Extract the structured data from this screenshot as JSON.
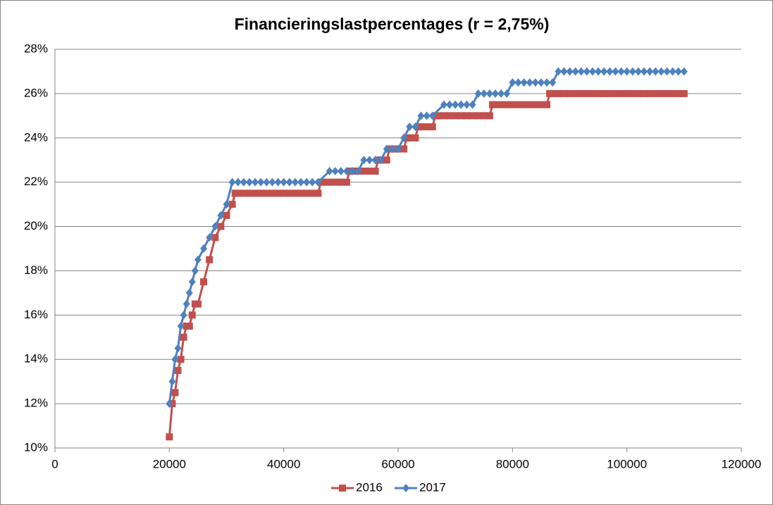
{
  "chart_data": {
    "type": "line",
    "title": "Financieringslastpercentages  (r = 2,75%)",
    "xlim": [
      0,
      120000
    ],
    "xticks": [
      0,
      20000,
      40000,
      60000,
      80000,
      100000,
      120000
    ],
    "ylim": [
      10,
      28
    ],
    "yticks": [
      {
        "value": 10,
        "label": "10%"
      },
      {
        "value": 12,
        "label": "12%"
      },
      {
        "value": 14,
        "label": "14%"
      },
      {
        "value": 16,
        "label": "16%"
      },
      {
        "value": 18,
        "label": "18%"
      },
      {
        "value": 20,
        "label": "20%"
      },
      {
        "value": 22,
        "label": "22%"
      },
      {
        "value": 24,
        "label": "24%"
      },
      {
        "value": 26,
        "label": "26%"
      },
      {
        "value": 28,
        "label": "28%"
      }
    ],
    "grid": true,
    "legend": "bottom",
    "series": [
      {
        "name": "2016",
        "color": "#c0504d",
        "marker": "square",
        "x": [
          20000,
          20500,
          21000,
          21500,
          22000,
          22500,
          23000,
          23500,
          24000,
          24500,
          25000,
          26000,
          27000,
          28000,
          29000,
          30000,
          31000,
          31500,
          32000,
          33000,
          34000,
          35000,
          36000,
          37000,
          38000,
          39000,
          40000,
          41000,
          42000,
          43000,
          44000,
          45000,
          46000,
          46500,
          47000,
          48000,
          49000,
          50000,
          51000,
          51500,
          52000,
          53000,
          54000,
          55000,
          56000,
          56500,
          57000,
          58000,
          58500,
          59000,
          60000,
          61000,
          61500,
          62000,
          63000,
          63500,
          64000,
          65000,
          66000,
          66500,
          67000,
          68000,
          69000,
          70000,
          71000,
          72000,
          73000,
          74000,
          75000,
          76000,
          76500,
          77000,
          78000,
          79000,
          80000,
          81000,
          82000,
          83000,
          84000,
          85000,
          86000,
          86500,
          87000,
          88000,
          89000,
          90000,
          91000,
          92000,
          93000,
          94000,
          95000,
          96000,
          97000,
          98000,
          99000,
          100000,
          101000,
          102000,
          103000,
          104000,
          105000,
          106000,
          107000,
          108000,
          109000,
          110000
        ],
        "values": [
          10.5,
          12,
          12.5,
          13.5,
          14,
          15,
          15.5,
          15.5,
          16,
          16.5,
          16.5,
          17.5,
          18.5,
          19.5,
          20,
          20.5,
          21,
          21.5,
          21.5,
          21.5,
          21.5,
          21.5,
          21.5,
          21.5,
          21.5,
          21.5,
          21.5,
          21.5,
          21.5,
          21.5,
          21.5,
          21.5,
          21.5,
          22,
          22,
          22,
          22,
          22,
          22,
          22.5,
          22.5,
          22.5,
          22.5,
          22.5,
          22.5,
          23,
          23,
          23,
          23.5,
          23.5,
          23.5,
          23.5,
          24,
          24,
          24,
          24.5,
          24.5,
          24.5,
          24.5,
          25,
          25,
          25,
          25,
          25,
          25,
          25,
          25,
          25,
          25,
          25,
          25.5,
          25.5,
          25.5,
          25.5,
          25.5,
          25.5,
          25.5,
          25.5,
          25.5,
          25.5,
          25.5,
          26,
          26,
          26,
          26,
          26,
          26,
          26,
          26,
          26,
          26,
          26,
          26,
          26,
          26,
          26,
          26,
          26,
          26,
          26,
          26,
          26,
          26,
          26,
          26,
          26
        ]
      },
      {
        "name": "2017",
        "color": "#4f81bd",
        "marker": "diamond",
        "x": [
          20000,
          20500,
          21000,
          21500,
          22000,
          22500,
          23000,
          23500,
          24000,
          24500,
          25000,
          26000,
          27000,
          28000,
          29000,
          30000,
          31000,
          32000,
          33000,
          34000,
          35000,
          36000,
          37000,
          38000,
          39000,
          40000,
          41000,
          42000,
          43000,
          44000,
          45000,
          46000,
          48000,
          49000,
          50000,
          51000,
          52000,
          53000,
          54000,
          55000,
          56000,
          57000,
          58000,
          59000,
          60000,
          61000,
          62000,
          63000,
          64000,
          65000,
          66000,
          68000,
          69000,
          70000,
          71000,
          72000,
          73000,
          74000,
          75000,
          76000,
          77000,
          78000,
          79000,
          80000,
          81000,
          82000,
          83000,
          84000,
          85000,
          86000,
          87000,
          88000,
          89000,
          90000,
          91000,
          92000,
          93000,
          94000,
          95000,
          96000,
          97000,
          98000,
          99000,
          100000,
          101000,
          102000,
          103000,
          104000,
          105000,
          106000,
          107000,
          108000,
          109000,
          110000
        ],
        "values": [
          12,
          13,
          14,
          14.5,
          15.5,
          16,
          16.5,
          17,
          17.5,
          18,
          18.5,
          19,
          19.5,
          20,
          20.5,
          21,
          22,
          22,
          22,
          22,
          22,
          22,
          22,
          22,
          22,
          22,
          22,
          22,
          22,
          22,
          22,
          22,
          22.5,
          22.5,
          22.5,
          22.5,
          22.5,
          22.5,
          23,
          23,
          23,
          23,
          23.5,
          23.5,
          23.5,
          24,
          24.5,
          24.5,
          25,
          25,
          25,
          25.5,
          25.5,
          25.5,
          25.5,
          25.5,
          25.5,
          26,
          26,
          26,
          26,
          26,
          26,
          26.5,
          26.5,
          26.5,
          26.5,
          26.5,
          26.5,
          26.5,
          26.5,
          27,
          27,
          27,
          27,
          27,
          27,
          27,
          27,
          27,
          27,
          27,
          27,
          27,
          27,
          27,
          27,
          27,
          27,
          27,
          27,
          27,
          27,
          27
        ]
      }
    ]
  }
}
